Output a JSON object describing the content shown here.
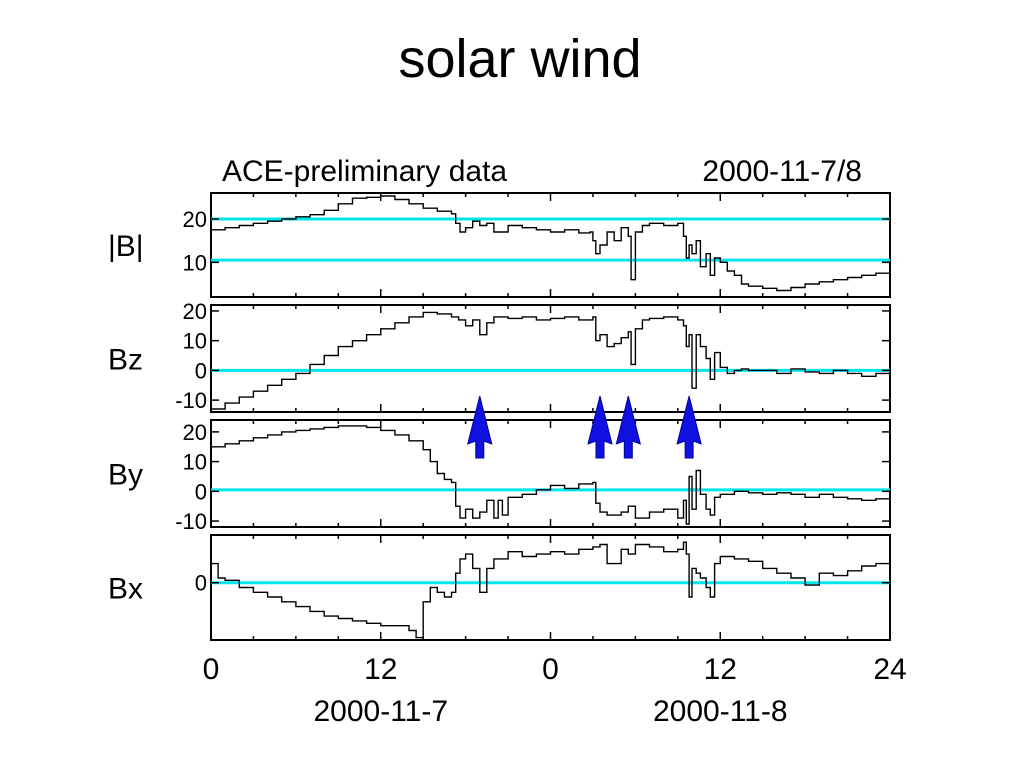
{
  "slide": {
    "title": "solar wind"
  },
  "chart_data": {
    "type": "line",
    "header_left": "ACE-preliminary data",
    "header_right": "2000-11-7/8",
    "x_unit": "hour",
    "xlim": [
      0,
      48
    ],
    "x_ticks": [
      {
        "x": 0,
        "label": "0"
      },
      {
        "x": 12,
        "label": "12"
      },
      {
        "x": 24,
        "label": "0"
      },
      {
        "x": 36,
        "label": "12"
      },
      {
        "x": 48,
        "label": "24"
      }
    ],
    "date_labels": [
      {
        "x": 12,
        "label": "2000-11-7"
      },
      {
        "x": 36,
        "label": "2000-11-8"
      }
    ],
    "arrows_x": [
      19,
      27.5,
      29.5,
      33.8
    ],
    "arrow_color": "#1010e0",
    "reference_line_color": "#00e5ee",
    "trace_color": "#000000",
    "panels": [
      {
        "label": "|B|",
        "ylim": [
          2,
          26
        ],
        "yticks": [
          {
            "v": 20,
            "label": "20"
          },
          {
            "v": 10,
            "label": "10"
          }
        ],
        "reference_lines": [
          20,
          10.5
        ],
        "series": {
          "x": [
            0,
            1,
            2,
            3,
            4,
            5,
            6,
            7,
            8,
            9,
            10,
            11,
            12,
            13,
            14,
            15,
            16,
            17,
            17.3,
            17.6,
            18,
            18.5,
            19,
            19.5,
            20,
            21,
            22,
            23,
            24,
            25,
            26,
            26.8,
            27,
            27.2,
            27.5,
            28,
            28.5,
            29,
            29.5,
            29.7,
            30,
            30.5,
            31,
            32,
            33,
            33.4,
            33.6,
            33.8,
            34,
            34.3,
            34.6,
            35,
            35.3,
            35.6,
            36,
            36.5,
            37,
            37.5,
            38,
            39,
            40,
            40.5,
            41,
            42,
            43,
            44,
            45,
            46,
            47,
            48
          ],
          "y": [
            17.5,
            18,
            18.5,
            19,
            19.5,
            20,
            20.5,
            21,
            22,
            23.5,
            24.8,
            25,
            25.3,
            24.5,
            23.5,
            22.5,
            21.8,
            21.2,
            19,
            17,
            18,
            19.5,
            18.5,
            19,
            17,
            18.5,
            18,
            17.5,
            17,
            17.5,
            16.8,
            17,
            15,
            12,
            14,
            17,
            15,
            18,
            16,
            6,
            17,
            18.5,
            19,
            18.5,
            19,
            16,
            11,
            14,
            12,
            15,
            9,
            12,
            7,
            11,
            10,
            8,
            7,
            5,
            4.5,
            4,
            3.5,
            3.5,
            4.2,
            5,
            5.5,
            6,
            6.5,
            7,
            7.5,
            7.8
          ]
        }
      },
      {
        "label": "Bz",
        "ylim": [
          -14,
          22
        ],
        "yticks": [
          {
            "v": 20,
            "label": "20"
          },
          {
            "v": 10,
            "label": "10"
          },
          {
            "v": 0,
            "label": "0"
          },
          {
            "v": -10,
            "label": "-10"
          }
        ],
        "reference_lines": [
          0
        ],
        "series": {
          "x": [
            0,
            1,
            2,
            3,
            4,
            5,
            6,
            7,
            8,
            9,
            10,
            11,
            12,
            13,
            14,
            15,
            16,
            17,
            17.5,
            18,
            18.5,
            19,
            19.5,
            20,
            21,
            22,
            23,
            24,
            25,
            26,
            27,
            27.2,
            27.5,
            28,
            28.5,
            29,
            29.5,
            29.7,
            30,
            30.5,
            31,
            32,
            33,
            33.4,
            33.6,
            33.8,
            34,
            34.3,
            34.6,
            35,
            35.3,
            35.6,
            36,
            36.5,
            37,
            37.5,
            38,
            39,
            40,
            41,
            42,
            43,
            44,
            45,
            46,
            47,
            48
          ],
          "y": [
            -13,
            -11,
            -9,
            -7,
            -5,
            -3,
            -1,
            2,
            5,
            8,
            10,
            12,
            14,
            16,
            18,
            19.5,
            19,
            18,
            17,
            15,
            17,
            12,
            16,
            18,
            17.5,
            18,
            17,
            17.5,
            18,
            17,
            18,
            10,
            12,
            8,
            9,
            11,
            13,
            2,
            14,
            17,
            17.5,
            18,
            17,
            15,
            8,
            12,
            -6,
            12,
            8,
            4,
            -3,
            6,
            1,
            -1,
            0,
            0.5,
            0,
            0,
            -1,
            0.5,
            -0.5,
            -1,
            0,
            -1,
            -2,
            -1,
            -2
          ]
        }
      },
      {
        "label": "By",
        "ylim": [
          -12,
          24
        ],
        "yticks": [
          {
            "v": 20,
            "label": "20"
          },
          {
            "v": 10,
            "label": "10"
          },
          {
            "v": 0,
            "label": "0"
          },
          {
            "v": -10,
            "label": "-10"
          }
        ],
        "reference_lines": [
          0.5
        ],
        "series": {
          "x": [
            0,
            1,
            2,
            3,
            4,
            5,
            6,
            7,
            8,
            9,
            10,
            11,
            12,
            13,
            14,
            15,
            15.5,
            16,
            16.5,
            17,
            17.3,
            17.6,
            18,
            18.5,
            19,
            19.5,
            20,
            20.3,
            20.6,
            21,
            22,
            23,
            24,
            25,
            26,
            27,
            27.2,
            27.5,
            28,
            29,
            29.5,
            30,
            31,
            32,
            33,
            33.4,
            33.6,
            33.8,
            34,
            34.3,
            34.6,
            35,
            35.3,
            35.6,
            36,
            36.5,
            37,
            38,
            39,
            40,
            41,
            42,
            43,
            44,
            45,
            46,
            47,
            48
          ],
          "y": [
            15,
            16,
            17,
            18,
            19,
            20,
            20.5,
            21,
            21.5,
            22,
            22,
            21.5,
            20.5,
            19,
            17,
            14,
            10,
            6,
            4,
            3,
            -5,
            -9,
            -6,
            -9,
            -7,
            -3,
            -9,
            -3,
            -8,
            -2,
            -1,
            0.5,
            2,
            1,
            2.5,
            3,
            -4,
            -7,
            -8,
            -7,
            -5,
            -9,
            -7,
            -6,
            -9,
            -3,
            -11,
            5,
            -6,
            7,
            -1,
            -6,
            -8,
            -2,
            -1,
            -1,
            0,
            -0.5,
            -1,
            -0.5,
            -1,
            -2,
            -1,
            -2,
            -2.5,
            -3,
            -2.5,
            -3
          ]
        }
      },
      {
        "label": "Bx",
        "ylim": [
          -12,
          10
        ],
        "yticks": [
          {
            "v": 0,
            "label": "0"
          }
        ],
        "reference_lines": [
          0
        ],
        "series": {
          "x": [
            0,
            0.5,
            1,
            2,
            3,
            4,
            5,
            6,
            7,
            8,
            9,
            10,
            11,
            12,
            13,
            14,
            14.5,
            15,
            15.5,
            16,
            16.5,
            17,
            17.3,
            17.6,
            18,
            18.5,
            19,
            19.5,
            20,
            21,
            22,
            23,
            24,
            25,
            26,
            27,
            27.5,
            28,
            29,
            29.5,
            30,
            31,
            32,
            33,
            33.4,
            33.6,
            33.8,
            34,
            34.3,
            34.6,
            35,
            35.3,
            35.6,
            36,
            37,
            38,
            39,
            40,
            41,
            42,
            43,
            44,
            45,
            46,
            47,
            48
          ],
          "y": [
            4,
            1,
            0.5,
            -1,
            -2,
            -3,
            -4,
            -5,
            -6,
            -7,
            -7.5,
            -8,
            -8.5,
            -9,
            -9,
            -10,
            -11.5,
            -4,
            -1,
            -2,
            -3,
            -2,
            2,
            5,
            6,
            3,
            -2,
            3,
            5,
            6.5,
            5.5,
            6,
            6.5,
            6,
            7,
            7.5,
            8,
            4,
            7,
            6,
            8,
            7.5,
            6.5,
            7,
            8.5,
            6,
            -3,
            3,
            2,
            1,
            -1,
            -3,
            4,
            5.5,
            5,
            4.5,
            3,
            2,
            1,
            -0.5,
            2,
            1.5,
            2.5,
            3.5,
            4,
            6
          ]
        }
      }
    ]
  }
}
